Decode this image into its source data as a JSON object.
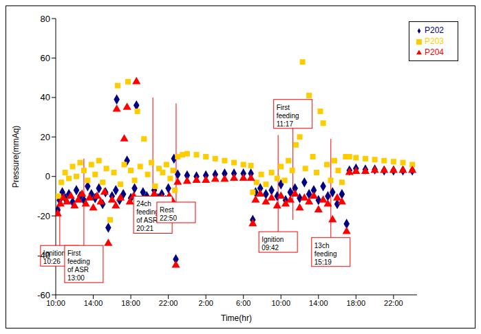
{
  "chart_data": {
    "type": "scatter",
    "x_label": "Time(hr)",
    "y_label": "Pressure(mmAq)",
    "xlim": [
      10,
      48.5
    ],
    "xticks": [
      {
        "value": 10,
        "label": "10:00"
      },
      {
        "value": 14,
        "label": "14:00"
      },
      {
        "value": 18,
        "label": "18:00"
      },
      {
        "value": 22,
        "label": "22:00"
      },
      {
        "value": 26,
        "label": "2:00"
      },
      {
        "value": 30,
        "label": "6:00"
      },
      {
        "value": 34,
        "label": "10:00"
      },
      {
        "value": 38,
        "label": "14:00"
      },
      {
        "value": 42,
        "label": "18:00"
      },
      {
        "value": 46,
        "label": "22:00"
      }
    ],
    "ylim": [
      -60,
      80
    ],
    "yticks": [
      -60,
      -40,
      -20,
      0,
      20,
      40,
      60,
      80
    ],
    "grid": false,
    "legend": "upper right",
    "series": [
      {
        "name": "P202",
        "color": "#000080",
        "marker": "diamond",
        "x": [
          10.2,
          10.4,
          10.7,
          11,
          11.4,
          11.8,
          12.2,
          12.6,
          13,
          13.4,
          13.8,
          14.2,
          14.6,
          15,
          15.3,
          15.6,
          16,
          16.4,
          16.5,
          16.8,
          17.2,
          17.6,
          18,
          18.4,
          18.6,
          18.9,
          19.3,
          19.7,
          20.1,
          20.5,
          20.9,
          21.3,
          21.7,
          22,
          22.4,
          22.6,
          22.8,
          23,
          24,
          25,
          26,
          27,
          28,
          29,
          30,
          30.8,
          31,
          31.3,
          31.8,
          32.4,
          33,
          33.6,
          34,
          34.5,
          35,
          35.5,
          36,
          36.5,
          37,
          37.5,
          38,
          38.5,
          39,
          39.5,
          40,
          40.5,
          41,
          41.3,
          42,
          43,
          44,
          45,
          46,
          47,
          48
        ],
        "values": [
          -17,
          -12,
          -8,
          -11,
          -9,
          -13,
          -7,
          -10,
          -12,
          -5,
          -9,
          -11,
          -6,
          -14,
          -8,
          -26,
          -10,
          -7,
          39,
          -12,
          -9,
          8,
          -11,
          -6,
          36,
          -13,
          -8,
          -10,
          -14,
          -7,
          -11,
          -9,
          -12,
          -6,
          -14,
          9,
          -42,
          1,
          0.5,
          0,
          0.5,
          1,
          1.5,
          1.5,
          1.5,
          1.5,
          -22,
          -8,
          -6,
          -9,
          -7,
          -10,
          -4,
          -12,
          -8,
          -6,
          -11,
          -3,
          -9,
          -7,
          -12,
          -5,
          -10,
          -8,
          -14,
          -9,
          -24,
          3,
          4,
          3.5,
          3.5,
          3,
          3,
          3,
          3
        ]
      },
      {
        "name": "P203",
        "color": "#ffcc00",
        "marker": "square",
        "x": [
          10.3,
          10.6,
          11,
          11.4,
          11.8,
          12.2,
          12.6,
          13,
          13.4,
          13.8,
          14.2,
          14.6,
          15,
          15.4,
          15.8,
          16.2,
          16.6,
          16.9,
          17.3,
          17.7,
          18,
          18.4,
          18.7,
          19,
          19.4,
          19.8,
          20.2,
          20.6,
          21,
          21.4,
          21.8,
          22.2,
          22.5,
          22.7,
          23,
          23.5,
          24,
          25,
          26,
          27,
          28,
          29,
          30,
          30.8,
          31,
          31.4,
          31.9,
          32.4,
          33,
          33.6,
          34,
          34.4,
          34.8,
          35.2,
          35.6,
          36,
          36.3,
          36.6,
          37,
          37.4,
          37.8,
          38.2,
          38.5,
          38.9,
          39.3,
          39.7,
          40.1,
          40.5,
          40.9,
          41.3,
          42,
          43,
          44,
          45,
          46,
          47,
          48
        ],
        "values": [
          -10,
          -3,
          2,
          -1,
          5,
          0,
          7,
          3,
          -2,
          6,
          1,
          8,
          -3,
          4,
          -22,
          2,
          46,
          -4,
          6,
          48,
          3,
          -2,
          33,
          5,
          19,
          1,
          7,
          -5,
          4,
          2,
          6,
          -1,
          3,
          -7,
          10,
          11,
          11.5,
          11,
          10,
          9,
          8,
          7,
          6,
          5.5,
          -8,
          -3,
          1,
          -4,
          2,
          -1,
          5,
          -2,
          8,
          3,
          16,
          20,
          58,
          4,
          41,
          10,
          2,
          33,
          27,
          6,
          -2,
          8,
          3,
          -3,
          10,
          10,
          9.5,
          9,
          8.5,
          8,
          7.5,
          7,
          6
        ]
      },
      {
        "name": "P204",
        "color": "#ff0000",
        "marker": "triangle",
        "x": [
          10.2,
          10.5,
          10.8,
          11.2,
          11.6,
          12,
          12.4,
          12.8,
          13.2,
          13.6,
          14,
          14.4,
          14.8,
          15.2,
          15.6,
          16,
          16.4,
          16.5,
          16.9,
          17.3,
          17.6,
          17.9,
          18.3,
          18.6,
          18.9,
          19.3,
          19.7,
          20.1,
          20.5,
          20.9,
          21.3,
          21.7,
          22.1,
          22.5,
          22.8,
          23,
          24,
          25,
          26,
          27,
          28,
          29,
          30,
          30.8,
          31,
          31.3,
          31.8,
          32.4,
          33,
          33.6,
          34,
          34.5,
          35,
          35.5,
          36,
          36.5,
          37,
          37.5,
          38,
          38.5,
          39,
          39.5,
          40,
          40.5,
          41,
          41.3,
          42,
          43,
          44,
          45,
          46,
          47,
          48
        ],
        "values": [
          -19,
          -14,
          -11,
          -13,
          -10,
          -15,
          -12,
          -9,
          -14,
          -11,
          -16,
          -10,
          -13,
          -8,
          -34,
          -12,
          -15,
          34,
          -11,
          19,
          35,
          -13,
          -10,
          48,
          -16,
          -12,
          -14,
          -20,
          -9,
          -13,
          -11,
          -15,
          -10,
          -13,
          -45,
          -3,
          -2.5,
          -2,
          -2,
          -1.5,
          -1.5,
          -1,
          -1,
          -1,
          -24,
          -12,
          -9,
          -13,
          -11,
          -15,
          -10,
          -14,
          -12,
          -9,
          -16,
          -11,
          -13,
          -10,
          -17,
          -12,
          -14,
          -22,
          -11,
          -13,
          -28,
          2,
          2.5,
          2.5,
          3,
          3,
          3,
          3,
          3
        ]
      }
    ],
    "annotations": [
      {
        "text": [
          "Ignition",
          "10:26"
        ],
        "x": 10.43
      },
      {
        "text": [
          "First",
          "feeding",
          "of ASR",
          "13:00"
        ],
        "x": 13
      },
      {
        "text": [
          "24ch",
          "feeding",
          "of ASR",
          "20:21"
        ],
        "x": 20.35
      },
      {
        "text": [
          "Rest",
          "22:50"
        ],
        "x": 22.83
      },
      {
        "text": [
          "Ignition",
          "09:42"
        ],
        "x": 33.7
      },
      {
        "text": [
          "First",
          "feeding",
          "11:17"
        ],
        "x": 35.28
      },
      {
        "text": [
          "13ch",
          "feeding",
          "15:19"
        ],
        "x": 39.32
      }
    ]
  }
}
